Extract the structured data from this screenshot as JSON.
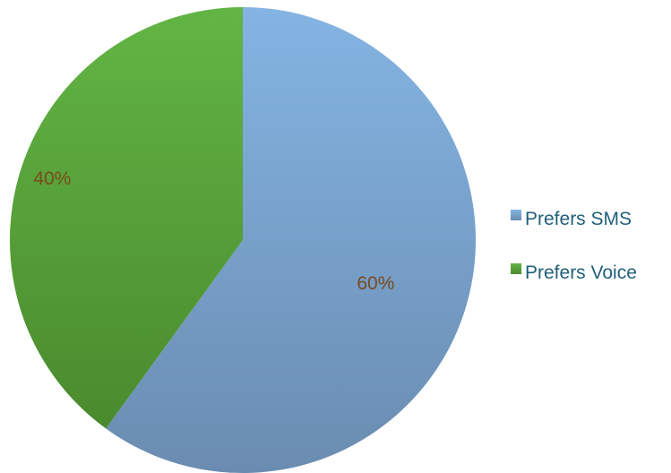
{
  "chart_data": {
    "type": "pie",
    "categories": [
      "Prefers SMS",
      "Prefers Voice"
    ],
    "values": [
      60,
      40
    ],
    "labels": [
      "60%",
      "40%"
    ],
    "colors": [
      "#7aa3cf",
      "#5aa43a"
    ],
    "start_angle_deg": 0,
    "direction": "clockwise",
    "legend_position": "right"
  }
}
